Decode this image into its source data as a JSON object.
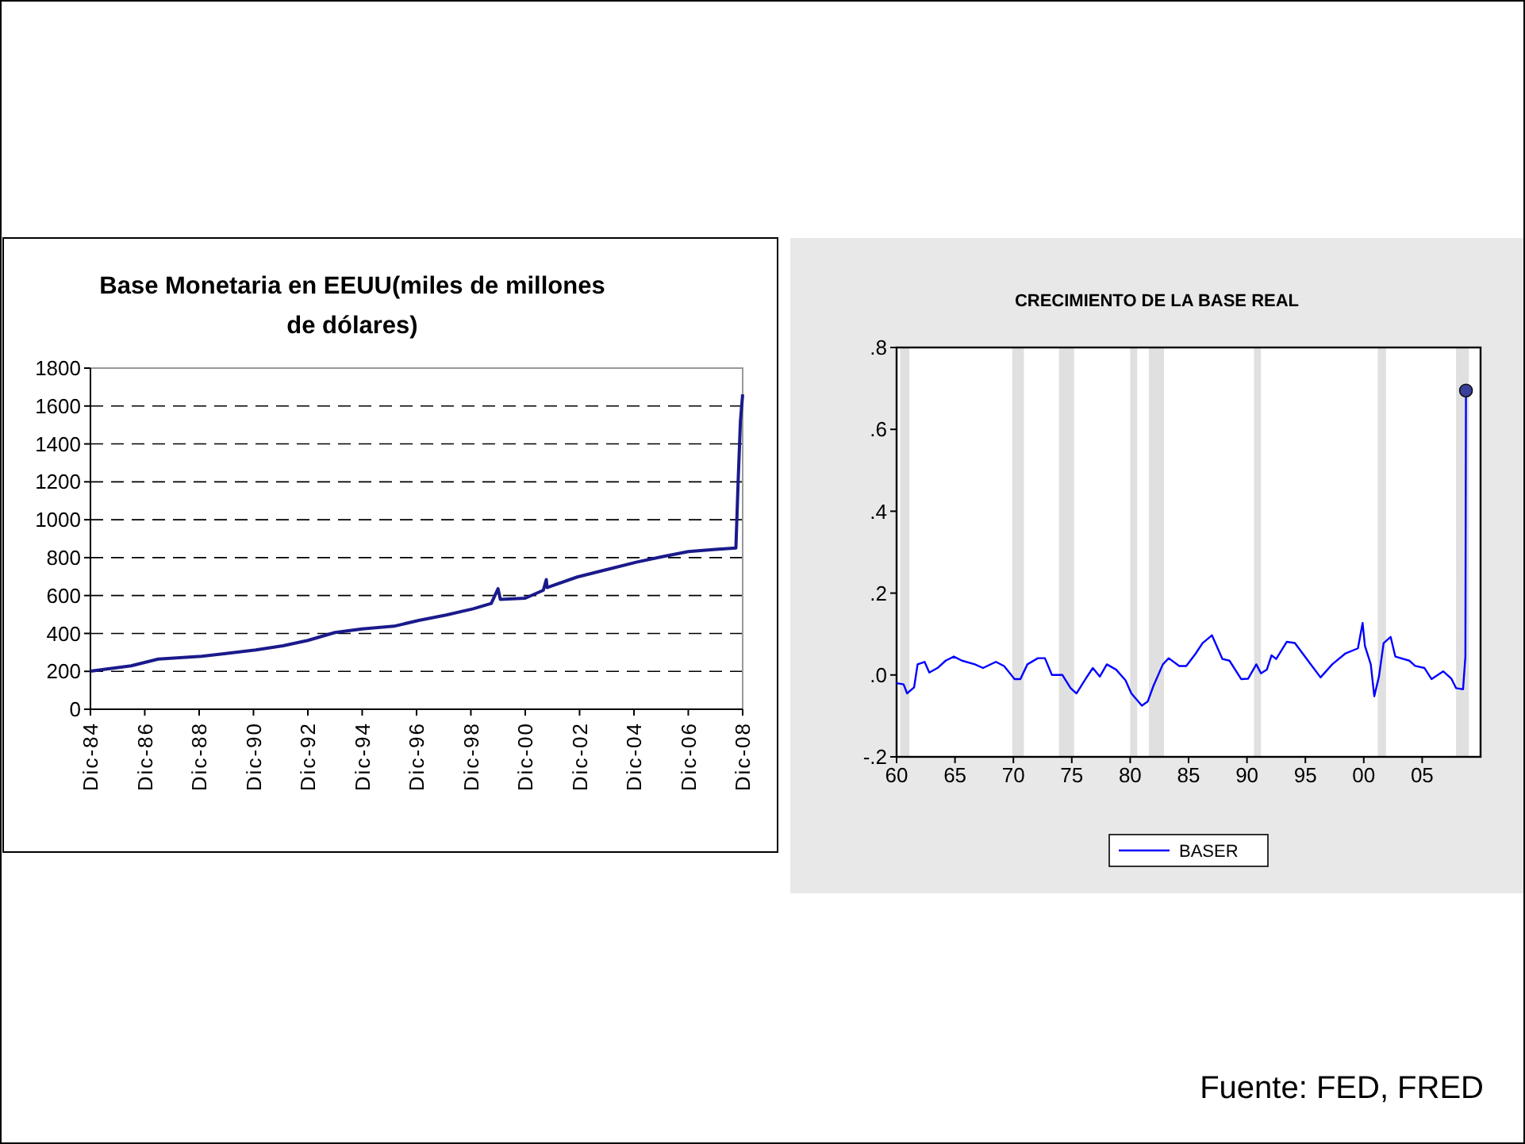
{
  "chart_data": [
    {
      "type": "line",
      "title": "Base Monetaria en EEUU(miles de millones de dólares)",
      "grid": "y",
      "xlim": [
        "1984-12",
        "2008-12"
      ],
      "ylim": [
        0,
        1800
      ],
      "yticks": [
        0,
        200,
        400,
        600,
        800,
        1000,
        1200,
        1400,
        1600,
        1800
      ],
      "xticks": [
        {
          "value": "1984-12",
          "label": "Dic-84"
        },
        {
          "value": "1986-12",
          "label": "Dic-86"
        },
        {
          "value": "1988-12",
          "label": "Dic-88"
        },
        {
          "value": "1990-12",
          "label": "Dic-90"
        },
        {
          "value": "1992-12",
          "label": "Dic-92"
        },
        {
          "value": "1994-12",
          "label": "Dic-94"
        },
        {
          "value": "1996-12",
          "label": "Dic-96"
        },
        {
          "value": "1998-12",
          "label": "Dic-98"
        },
        {
          "value": "2000-12",
          "label": "Dic-00"
        },
        {
          "value": "2002-12",
          "label": "Dic-02"
        },
        {
          "value": "2004-12",
          "label": "Dic-04"
        },
        {
          "value": "2006-12",
          "label": "Dic-06"
        },
        {
          "value": "2008-12",
          "label": "Dic-08"
        }
      ],
      "series": [
        {
          "color": "#1a1a8c",
          "x": [
            "1984-12",
            "1986-06",
            "1987-06",
            "1989-01",
            "1989-11",
            "1991-01",
            "1992-01",
            "1992-12",
            "1993-12",
            "1994-12",
            "1996-02",
            "1997-01",
            "1998-01",
            "1999-01",
            "1999-09",
            "1999-12",
            "2000-01",
            "2000-12",
            "2001-08",
            "2001-09-10",
            "2001-09-20",
            "2002-11",
            "2004-01",
            "2005-01",
            "2005-12",
            "2006-12",
            "2007-12",
            "2008-09",
            "2008-10",
            "2008-11",
            "2008-12"
          ],
          "values": [
            201,
            229,
            265,
            279,
            293,
            313,
            335,
            363,
            405,
            424,
            438,
            469,
            497,
            530,
            558,
            636,
            580,
            586,
            628,
            684,
            642,
            698,
            740,
            776,
            804,
            832,
            843,
            851,
            1200,
            1521,
            1661
          ]
        }
      ]
    },
    {
      "type": "line",
      "title": "CRECIMIENTO DE LA BASE REAL",
      "grid": false,
      "legend": "bottom",
      "xlim": [
        1960,
        2010
      ],
      "ylim": [
        -0.2,
        0.8
      ],
      "xticks": [
        {
          "value": 1960,
          "label": "60"
        },
        {
          "value": 1965,
          "label": "65"
        },
        {
          "value": 1970,
          "label": "70"
        },
        {
          "value": 1975,
          "label": "75"
        },
        {
          "value": 1980,
          "label": "80"
        },
        {
          "value": 1985,
          "label": "85"
        },
        {
          "value": 1990,
          "label": "90"
        },
        {
          "value": 1995,
          "label": "95"
        },
        {
          "value": 2000,
          "label": "00"
        },
        {
          "value": 2005,
          "label": "05"
        }
      ],
      "yticks": [
        {
          "value": -0.2,
          "label": "-.2"
        },
        {
          "value": 0,
          "label": ".0"
        },
        {
          "value": 0.2,
          "label": ".2"
        },
        {
          "value": 0.4,
          "label": ".4"
        },
        {
          "value": 0.6,
          "label": ".6"
        },
        {
          "value": 0.8,
          "label": ".8"
        }
      ],
      "bands": [
        {
          "axis": "x",
          "from": 1960.3,
          "to": 1961.1,
          "color": "#e0e0e0"
        },
        {
          "axis": "x",
          "from": 1969.9,
          "to": 1970.9,
          "color": "#e0e0e0"
        },
        {
          "axis": "x",
          "from": 1973.9,
          "to": 1975.2,
          "color": "#e0e0e0"
        },
        {
          "axis": "x",
          "from": 1980.0,
          "to": 1980.6,
          "color": "#e0e0e0"
        },
        {
          "axis": "x",
          "from": 1981.6,
          "to": 1982.9,
          "color": "#e0e0e0"
        },
        {
          "axis": "x",
          "from": 1990.6,
          "to": 1991.2,
          "color": "#e0e0e0"
        },
        {
          "axis": "x",
          "from": 2001.2,
          "to": 2001.9,
          "color": "#e0e0e0"
        },
        {
          "axis": "x",
          "from": 2007.9,
          "to": 2009.0,
          "color": "#e0e0e0"
        }
      ],
      "annotations": [
        "Fuente: FED, FRED"
      ],
      "series": [
        {
          "name": "BASER",
          "color": "#0000ff",
          "x": [
            1960,
            1960.6,
            1960.9,
            1961.5,
            1961.8,
            1962.4,
            1962.8,
            1963.5,
            1964.2,
            1964.9,
            1965.6,
            1966.7,
            1967.4,
            1968.5,
            1969.2,
            1970.1,
            1970.6,
            1971.2,
            1972.1,
            1972.7,
            1973.3,
            1974.2,
            1974.9,
            1975.4,
            1976.2,
            1976.8,
            1977.4,
            1978.0,
            1978.8,
            1979.6,
            1980.1,
            1981.0,
            1981.5,
            1982.0,
            1982.8,
            1983.3,
            1984.2,
            1984.8,
            1985.6,
            1986.2,
            1987.0,
            1987.9,
            1988.5,
            1989.5,
            1990.1,
            1990.8,
            1991.2,
            1991.7,
            1992.1,
            1992.5,
            1993.4,
            1994.1,
            1995.3,
            1996.3,
            1997.3,
            1998.4,
            1999.5,
            1999.9,
            2000.1,
            2000.6,
            2000.9,
            2001.3,
            2001.7,
            2002.3,
            2002.7,
            2003.9,
            2004.4,
            2005.2,
            2005.8,
            2006.8,
            2007.5,
            2007.9,
            2008.5,
            2008.7,
            2008.75
          ],
          "values": [
            -0.02,
            -0.023,
            -0.045,
            -0.03,
            0.026,
            0.032,
            0.006,
            0.017,
            0.035,
            0.045,
            0.035,
            0.026,
            0.017,
            0.032,
            0.022,
            -0.01,
            -0.01,
            0.026,
            0.041,
            0.041,
            0.0,
            0.0,
            -0.032,
            -0.045,
            -0.009,
            0.017,
            -0.004,
            0.026,
            0.013,
            -0.013,
            -0.045,
            -0.075,
            -0.065,
            -0.026,
            0.026,
            0.041,
            0.022,
            0.022,
            0.052,
            0.078,
            0.097,
            0.039,
            0.035,
            -0.01,
            -0.009,
            0.026,
            0.004,
            0.013,
            0.048,
            0.039,
            0.081,
            0.078,
            0.032,
            -0.006,
            0.026,
            0.052,
            0.065,
            0.127,
            0.071,
            0.026,
            -0.052,
            -0.004,
            0.078,
            0.093,
            0.045,
            0.035,
            0.022,
            0.017,
            -0.01,
            0.009,
            -0.009,
            -0.032,
            -0.035,
            0.045,
            0.695
          ]
        },
        {
          "type": "scatter",
          "marker": "circle",
          "color": "#3a3f9a",
          "x": [
            2008.75
          ],
          "values": [
            0.695
          ]
        }
      ]
    }
  ]
}
